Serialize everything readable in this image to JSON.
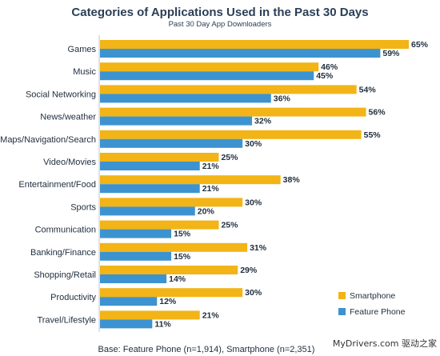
{
  "chart_data": {
    "type": "bar",
    "orientation": "horizontal",
    "title": "Categories of Applications Used in the Past 30 Days",
    "subtitle": "Past 30 Day App Downloaders",
    "categories": [
      "Games",
      "Music",
      "Social Networking",
      "News/weather",
      "Maps/Navigation/Search",
      "Video/Movies",
      "Entertainment/Food",
      "Sports",
      "Communication",
      "Banking/Finance",
      "Shopping/Retail",
      "Productivity",
      "Travel/Lifestyle"
    ],
    "series": [
      {
        "name": "Smartphone",
        "color": "#f2b416",
        "values": [
          65,
          46,
          54,
          56,
          55,
          25,
          38,
          30,
          25,
          31,
          29,
          30,
          21
        ]
      },
      {
        "name": "Feature Phone",
        "color": "#3d93cf",
        "values": [
          59,
          45,
          36,
          32,
          30,
          21,
          21,
          20,
          15,
          15,
          14,
          12,
          11
        ]
      }
    ],
    "value_suffix": "%",
    "xlim": [
      0,
      65
    ],
    "grid": false,
    "legend_position": "bottom-right"
  },
  "footnote": "Base: Feature Phone (n=1,914), Smartphone (n=2,351)",
  "watermark": "MyDrivers.com 驱动之家"
}
